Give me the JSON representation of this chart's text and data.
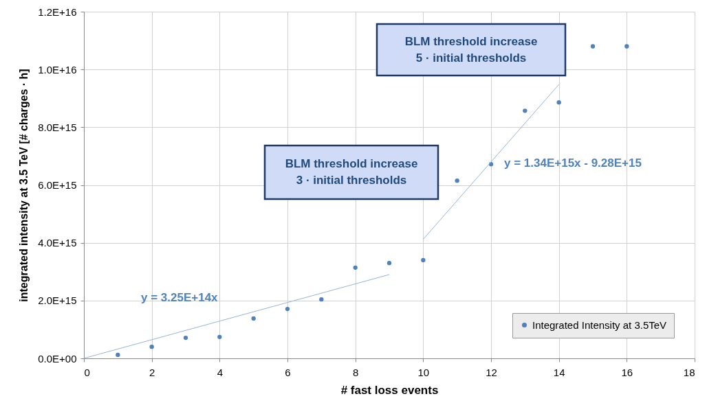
{
  "chart_data": {
    "type": "scatter",
    "xlabel": "# fast loss events",
    "ylabel": "integrated intensity at 3.5 TeV [# charges · h]",
    "xlim": [
      0,
      18
    ],
    "xticks": [
      0,
      2,
      4,
      6,
      8,
      10,
      12,
      14,
      16,
      18
    ],
    "ylim": [
      0,
      1.2e+16
    ],
    "yticks": [
      {
        "value": 0,
        "label": "0.0E+00"
      },
      {
        "value": 2000000000000000.0,
        "label": "2.0E+15"
      },
      {
        "value": 4000000000000000.0,
        "label": "4.0E+15"
      },
      {
        "value": 6000000000000000.0,
        "label": "6.0E+15"
      },
      {
        "value": 8000000000000000.0,
        "label": "8.0E+15"
      },
      {
        "value": 1e+16,
        "label": "1.0E+16"
      },
      {
        "value": 1.2e+16,
        "label": "1.2E+16"
      }
    ],
    "x": [
      1,
      2,
      3,
      4,
      5,
      6,
      7,
      8,
      9,
      10,
      11,
      12,
      13,
      14,
      15,
      16
    ],
    "series": [
      {
        "name": "Integrated Intensity at 3.5TeV",
        "color": "#4f81bd",
        "marker": "circle",
        "values": [
          120000000000000.0,
          400000000000000.0,
          710000000000000.0,
          740000000000000.0,
          1380000000000000.0,
          1710000000000000.0,
          2040000000000000.0,
          3140000000000000.0,
          3300000000000000.0,
          3400000000000000.0,
          6150000000000000.0,
          6720000000000000.0,
          8570000000000000.0,
          8860000000000000.0,
          1.08e+16,
          1.08e+16
        ]
      },
      {
        "type": "line",
        "color": "#95b3d7",
        "x": [
          0,
          9
        ],
        "values": [
          0,
          2900000000000000.0
        ]
      },
      {
        "type": "line",
        "color": "#95b3d7",
        "x": [
          10,
          14
        ],
        "values": [
          4120000000000000.0,
          9480000000000000.0
        ]
      }
    ],
    "annotations": [
      "BLM threshold increase\n3 · initial thresholds",
      "BLM threshold increase\n5 · initial thresholds",
      "y = 3.25E+14x",
      "y = 1.34E+15x - 9.28E+15"
    ],
    "grid": true,
    "legend": "bottom right"
  }
}
